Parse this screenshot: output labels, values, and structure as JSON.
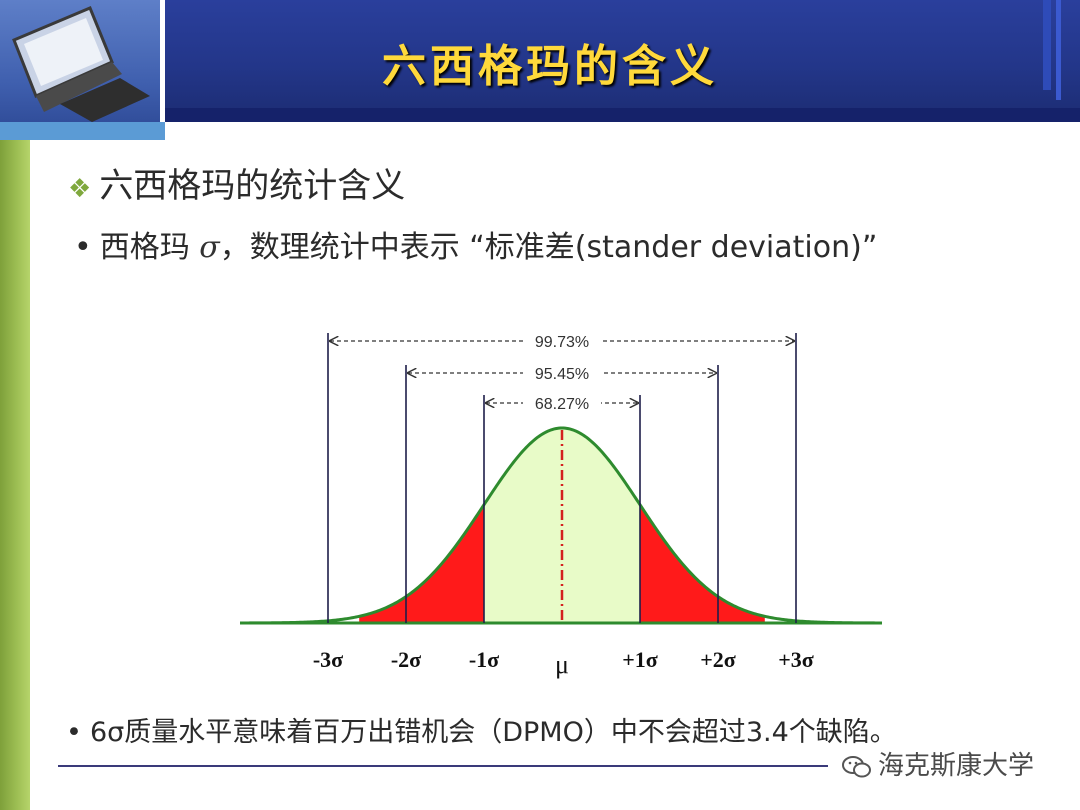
{
  "header": {
    "title": "六西格玛的含义"
  },
  "subtitle": "六西格玛的统计含义",
  "bullet": {
    "before": "西格玛",
    "symbol": "σ",
    "after": "，数理统计中表示 “标准差(stander deviation)”"
  },
  "diagram": {
    "ranges": [
      {
        "label": "99.73%",
        "from": -3,
        "to": 3
      },
      {
        "label": "95.45%",
        "from": -2,
        "to": 2
      },
      {
        "label": "68.27%",
        "from": -1,
        "to": 1
      }
    ],
    "axis_labels": [
      "-3σ",
      "-2σ",
      "-1σ",
      "μ",
      "+1σ",
      "+2σ",
      "+3σ"
    ],
    "axis_values": [
      -3,
      -2,
      -1,
      0,
      1,
      2,
      3
    ],
    "colors": {
      "curve": "#2e8b2e",
      "center_fill": "#e8fbc8",
      "tail_fill": "#ff1a1a",
      "mean_line": "#d42020"
    }
  },
  "note": "6σ质量水平意味着百万出错机会（DPMO）中不会超过3.4个缺陷。",
  "watermark": "海克斯康大学"
}
